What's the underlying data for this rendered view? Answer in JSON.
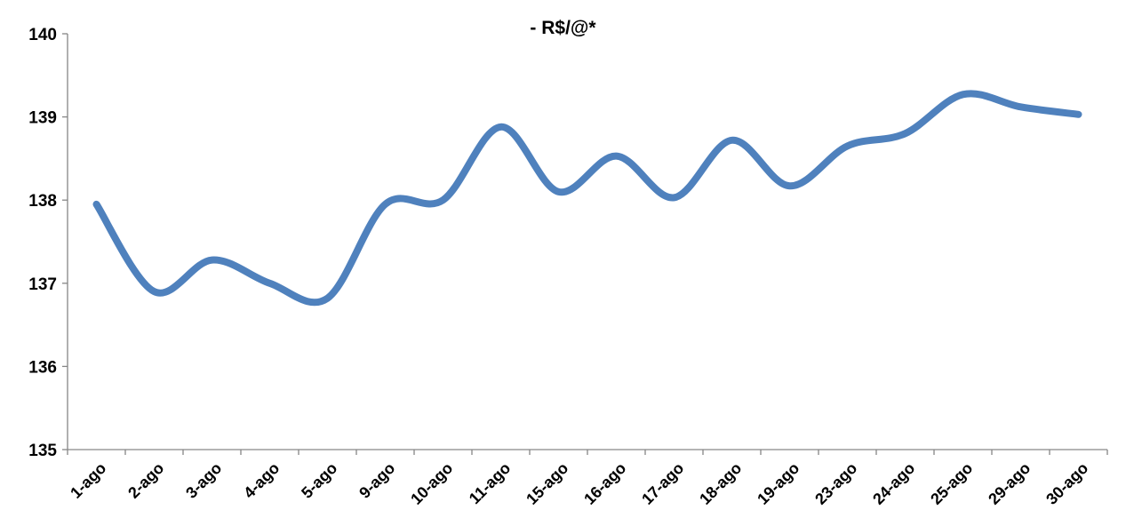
{
  "chart_data": {
    "type": "line",
    "title_line_1": "",
    "title_line_2": "- R$/@*",
    "xlabel": "",
    "ylabel": "",
    "categories": [
      "1-ago",
      "2-ago",
      "3-ago",
      "4-ago",
      "5-ago",
      "9-ago",
      "10-ago",
      "11-ago",
      "15-ago",
      "16-ago",
      "17-ago",
      "18-ago",
      "19-ago",
      "23-ago",
      "24-ago",
      "25-ago",
      "29-ago",
      "30-ago"
    ],
    "series": [
      {
        "values": [
          137.95,
          136.9,
          137.28,
          137.0,
          136.82,
          137.95,
          138.0,
          138.88,
          138.1,
          138.53,
          138.03,
          138.72,
          138.17,
          138.65,
          138.8,
          139.27,
          139.12,
          139.03
        ],
        "color": "#4f81bd"
      }
    ],
    "ylim": [
      135,
      140
    ],
    "yticks": [
      135,
      136,
      137,
      138,
      139,
      140
    ],
    "grid": false,
    "legend": "none"
  }
}
